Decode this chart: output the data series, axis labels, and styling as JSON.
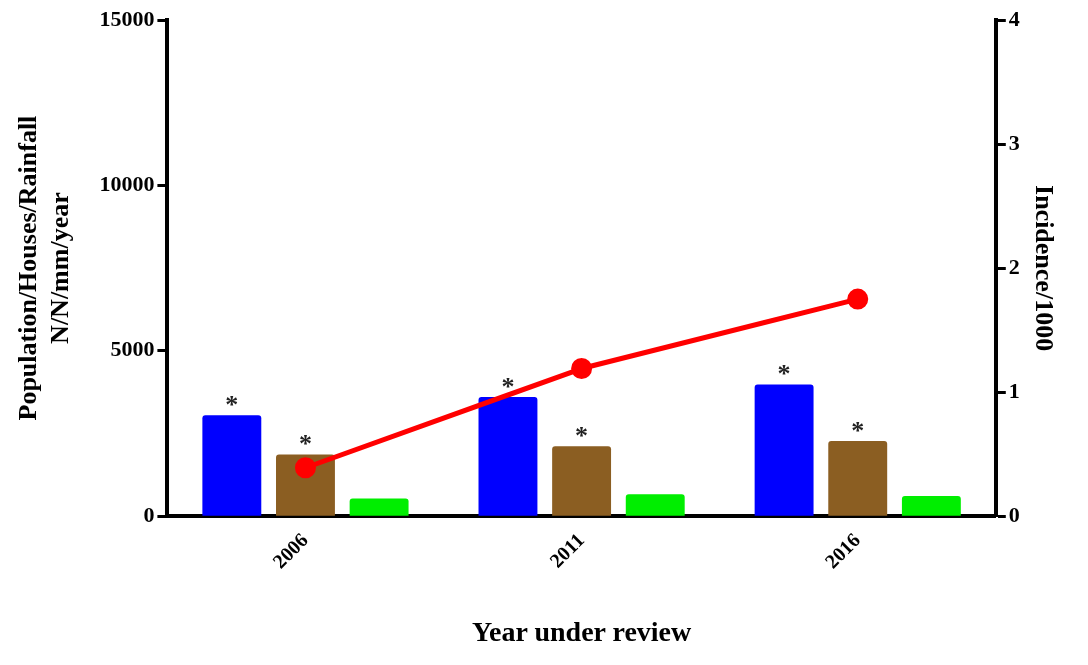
{
  "chart_data": {
    "type": "bar",
    "xlabel": "Year under review",
    "ylabel": "Population/Houses/Rainfall\nN/N/mm/year",
    "y2label": "Incidence/1000",
    "categories": [
      "2006",
      "2011",
      "2016"
    ],
    "series": [
      {
        "color": "#0000ff",
        "values": [
          3050,
          3600,
          3980
        ],
        "value_labels": [
          "*",
          "*",
          "*"
        ]
      },
      {
        "color": "#8b5e22",
        "values": [
          1860,
          2110,
          2270
        ],
        "value_labels": [
          "*",
          "*",
          "*"
        ]
      },
      {
        "color": "#00ee00",
        "values": [
          530,
          660,
          610
        ]
      },
      {
        "type": "line",
        "axis": "y2",
        "color": "#ff0000",
        "values": [
          0.39,
          1.19,
          1.75
        ]
      }
    ],
    "ylim": [
      0,
      15000
    ],
    "yticks": [
      0,
      5000,
      10000,
      15000
    ],
    "y2lim": [
      0,
      4
    ],
    "y2ticks": [
      0,
      1,
      2,
      3,
      4
    ],
    "grid": false,
    "legend": false,
    "marker": "circle"
  }
}
